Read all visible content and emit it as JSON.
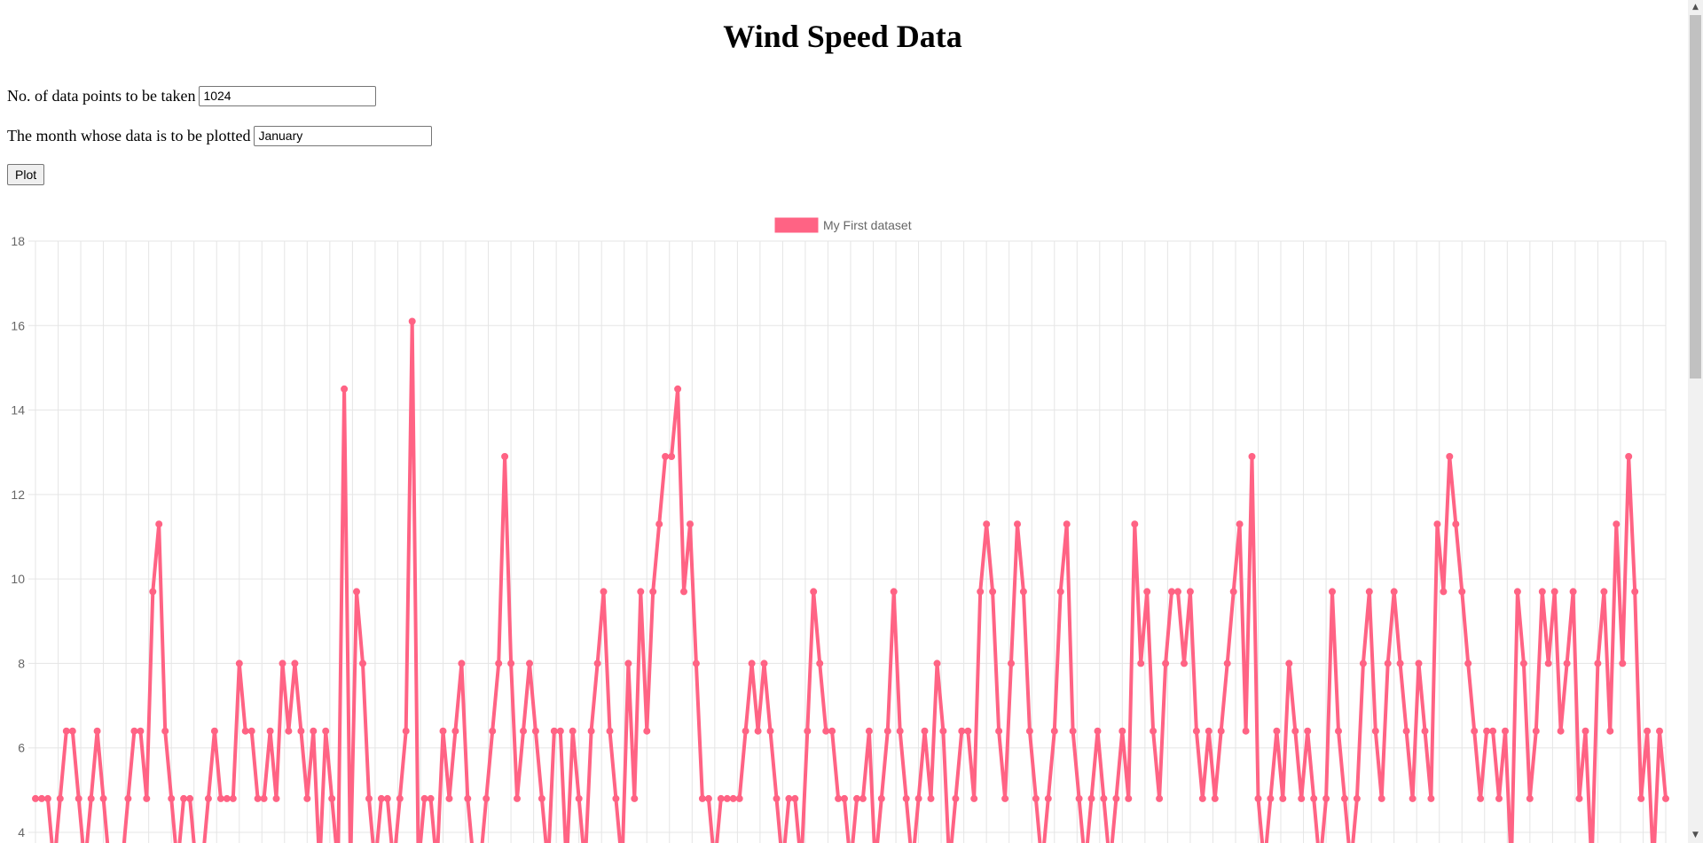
{
  "page": {
    "title": "Wind Speed Data"
  },
  "form": {
    "points_label": "No. of data points to be taken",
    "points_value": "1024",
    "month_label": "The month whose data is to be plotted",
    "month_value": "January",
    "plot_label": "Plot"
  },
  "chart_data": {
    "type": "line",
    "title": "",
    "xlabel": "",
    "ylabel": "",
    "ylim": [
      4,
      18
    ],
    "yticks": [
      18,
      16,
      14,
      12,
      10,
      8,
      6,
      4
    ],
    "grid": true,
    "legend": {
      "position": "top",
      "entries": [
        "My First dataset"
      ]
    },
    "series": [
      {
        "name": "My First dataset",
        "color": "#ff6384",
        "values": [
          4.8,
          4.8,
          4.8,
          3.2,
          4.8,
          6.4,
          6.4,
          4.8,
          3.2,
          4.8,
          6.4,
          4.8,
          3.2,
          3.2,
          3.2,
          4.8,
          6.4,
          6.4,
          4.8,
          9.7,
          11.3,
          6.4,
          4.8,
          3.2,
          4.8,
          4.8,
          3.2,
          3.2,
          4.8,
          6.4,
          4.8,
          4.8,
          4.8,
          8.0,
          6.4,
          6.4,
          4.8,
          4.8,
          6.4,
          4.8,
          8.0,
          6.4,
          8.0,
          6.4,
          4.8,
          6.4,
          3.2,
          6.4,
          4.8,
          3.2,
          14.5,
          3.2,
          9.7,
          8.0,
          4.8,
          3.2,
          4.8,
          4.8,
          3.2,
          4.8,
          6.4,
          16.1,
          3.2,
          4.8,
          4.8,
          3.2,
          6.4,
          4.8,
          6.4,
          8.0,
          4.8,
          3.2,
          3.2,
          4.8,
          6.4,
          8.0,
          12.9,
          8.0,
          4.8,
          6.4,
          8.0,
          6.4,
          4.8,
          3.2,
          6.4,
          6.4,
          3.2,
          6.4,
          4.8,
          3.2,
          6.4,
          8.0,
          9.7,
          6.4,
          4.8,
          3.2,
          8.0,
          4.8,
          9.7,
          6.4,
          9.7,
          11.3,
          12.9,
          12.9,
          14.5,
          9.7,
          11.3,
          8.0,
          4.8,
          4.8,
          3.2,
          4.8,
          4.8,
          4.8,
          4.8,
          6.4,
          8.0,
          6.4,
          8.0,
          6.4,
          4.8,
          3.2,
          4.8,
          4.8,
          3.2,
          6.4,
          9.7,
          8.0,
          6.4,
          6.4,
          4.8,
          4.8,
          3.2,
          4.8,
          4.8,
          6.4,
          3.2,
          4.8,
          6.4,
          9.7,
          6.4,
          4.8,
          3.2,
          4.8,
          6.4,
          4.8,
          8.0,
          6.4,
          3.2,
          4.8,
          6.4,
          6.4,
          4.8,
          9.7,
          11.3,
          9.7,
          6.4,
          4.8,
          8.0,
          11.3,
          9.7,
          6.4,
          4.8,
          3.2,
          4.8,
          6.4,
          9.7,
          11.3,
          6.4,
          4.8,
          3.2,
          4.8,
          6.4,
          4.8,
          3.2,
          4.8,
          6.4,
          4.8,
          11.3,
          8.0,
          9.7,
          6.4,
          4.8,
          8.0,
          9.7,
          9.7,
          8.0,
          9.7,
          6.4,
          4.8,
          6.4,
          4.8,
          6.4,
          8.0,
          9.7,
          11.3,
          6.4,
          12.9,
          4.8,
          3.2,
          4.8,
          6.4,
          4.8,
          8.0,
          6.4,
          4.8,
          6.4,
          4.8,
          3.2,
          4.8,
          9.7,
          6.4,
          4.8,
          3.2,
          4.8,
          8.0,
          9.7,
          6.4,
          4.8,
          8.0,
          9.7,
          8.0,
          6.4,
          4.8,
          8.0,
          6.4,
          4.8,
          11.3,
          9.7,
          12.9,
          11.3,
          9.7,
          8.0,
          6.4,
          4.8,
          6.4,
          6.4,
          4.8,
          6.4,
          3.2,
          9.7,
          8.0,
          4.8,
          6.4,
          9.7,
          8.0,
          9.7,
          6.4,
          8.0,
          9.7,
          4.8,
          6.4,
          3.2,
          8.0,
          9.7,
          6.4,
          11.3,
          8.0,
          12.9,
          9.7,
          4.8,
          6.4,
          3.2,
          6.4,
          4.8
        ]
      }
    ]
  }
}
